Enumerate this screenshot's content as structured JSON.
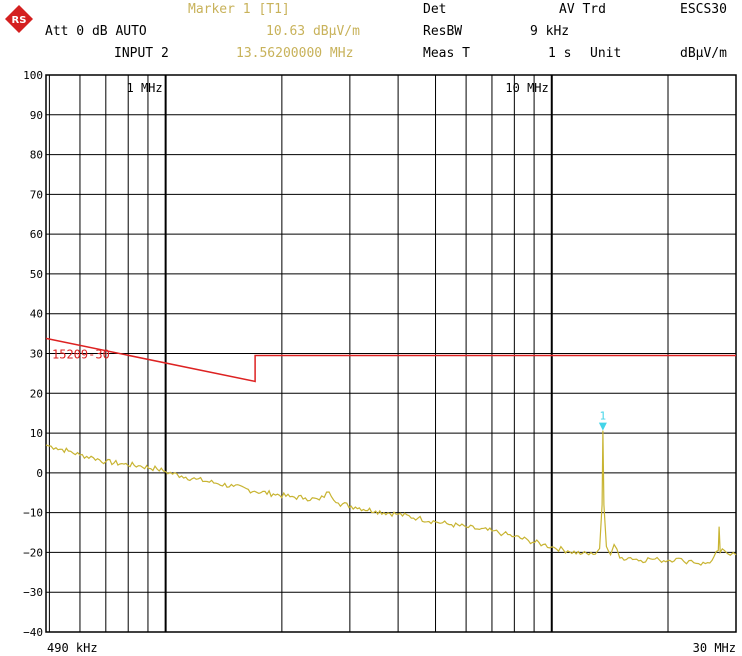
{
  "header": {
    "marker_label": "Marker 1 [T1]",
    "marker_level": "10.63 dBµV/m",
    "marker_freq": "13.56200000 MHz",
    "att": "Att 0 dB AUTO",
    "input": "INPUT 2",
    "det_label": "Det",
    "det_value": "AV Trd",
    "rbw_label": "ResBW",
    "rbw_value": "9 kHz",
    "meas_label": "Meas T",
    "meas_value": "1 s",
    "unit_label": "Unit",
    "unit_value": "dBµV/m",
    "code": "ESCS30"
  },
  "colors": {
    "trace": "#c8b432",
    "limit": "#dd2222",
    "marker": "#44d4e8",
    "grid": "#000000",
    "header_yellow": "#c8b25a",
    "logo": "#d42020"
  },
  "icons": {
    "logo": "rohde-schwarz-logo-icon",
    "marker": "marker-triangle-icon"
  },
  "chart_data": {
    "type": "line",
    "xscale": "log",
    "xlim_hz": [
      490000,
      30000000
    ],
    "ylim": [
      -40,
      100
    ],
    "y_ticks": [
      100,
      90,
      80,
      70,
      60,
      50,
      40,
      30,
      20,
      10,
      0,
      -10,
      -20,
      -30,
      -40
    ],
    "y_tick_labels": [
      "100",
      "90",
      "80",
      "70",
      "60",
      "50",
      "40",
      "30",
      "20",
      "10",
      "0",
      "−10",
      "−20",
      "−30",
      "−40"
    ],
    "x_start_label": "490 kHz",
    "x_stop_label": "30 MHz",
    "x_decade_labels": [
      {
        "freq_hz": 1000000,
        "label": "1 MHz"
      },
      {
        "freq_hz": 10000000,
        "label": "10 MHz"
      }
    ],
    "grid": true,
    "limit_line": {
      "name": "15209-30",
      "segments": [
        {
          "x_hz": [
            490000,
            1705000
          ],
          "y": [
            33.8,
            23.0
          ]
        },
        {
          "x_hz": [
            1705000,
            1705000
          ],
          "y": [
            23.0,
            29.5
          ]
        },
        {
          "x_hz": [
            1705000,
            30000000
          ],
          "y": [
            29.5,
            29.5
          ]
        }
      ]
    },
    "trace": {
      "name": "1",
      "points": [
        [
          490000,
          7.0
        ],
        [
          520000,
          6.3
        ],
        [
          560000,
          5.5
        ],
        [
          600000,
          4.5
        ],
        [
          650000,
          3.8
        ],
        [
          700000,
          2.8
        ],
        [
          780000,
          2.2
        ],
        [
          850000,
          1.8
        ],
        [
          950000,
          1.0
        ],
        [
          1000000,
          0.3
        ],
        [
          1100000,
          -0.8
        ],
        [
          1200000,
          -1.6
        ],
        [
          1350000,
          -2.6
        ],
        [
          1500000,
          -3.4
        ],
        [
          1700000,
          -4.6
        ],
        [
          1900000,
          -5.3
        ],
        [
          2100000,
          -6.0
        ],
        [
          2300000,
          -6.3
        ],
        [
          2500000,
          -6.8
        ],
        [
          2650000,
          -4.8
        ],
        [
          2800000,
          -7.6
        ],
        [
          3100000,
          -8.6
        ],
        [
          3500000,
          -9.6
        ],
        [
          4000000,
          -10.4
        ],
        [
          4500000,
          -11.4
        ],
        [
          5000000,
          -12.3
        ],
        [
          5500000,
          -13.0
        ],
        [
          6000000,
          -13.6
        ],
        [
          6500000,
          -14.2
        ],
        [
          7000000,
          -14.6
        ],
        [
          7500000,
          -15.3
        ],
        [
          8000000,
          -16.0
        ],
        [
          8700000,
          -17.0
        ],
        [
          9500000,
          -18.0
        ],
        [
          10000000,
          -18.6
        ],
        [
          11000000,
          -19.6
        ],
        [
          12000000,
          -20.3
        ],
        [
          12800000,
          -20.5
        ],
        [
          13300000,
          -19.0
        ],
        [
          13500000,
          -8.0
        ],
        [
          13562000,
          10.63
        ],
        [
          13650000,
          -8.0
        ],
        [
          13850000,
          -18.5
        ],
        [
          14200000,
          -20.6
        ],
        [
          14500000,
          -18.0
        ],
        [
          15000000,
          -21.4
        ],
        [
          16000000,
          -21.3
        ],
        [
          17000000,
          -22.0
        ],
        [
          18000000,
          -21.6
        ],
        [
          19000000,
          -21.9
        ],
        [
          20000000,
          -22.0
        ],
        [
          21000000,
          -21.5
        ],
        [
          22000000,
          -22.3
        ],
        [
          23000000,
          -22.0
        ],
        [
          24000000,
          -22.8
        ],
        [
          25000000,
          -22.8
        ],
        [
          26000000,
          -22.0
        ],
        [
          27000000,
          -19.5
        ],
        [
          27120000,
          -13.5
        ],
        [
          27300000,
          -20.0
        ],
        [
          28000000,
          -19.5
        ],
        [
          29000000,
          -20.7
        ],
        [
          30000000,
          -20.6
        ]
      ]
    },
    "marker": {
      "label": "1",
      "freq_hz": 13562000,
      "level": 10.63
    }
  }
}
